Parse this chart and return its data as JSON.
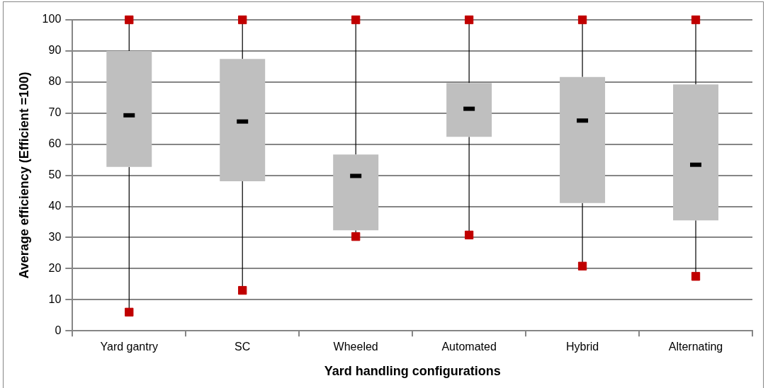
{
  "chart_data": {
    "type": "box",
    "xlabel": "Yard handling configurations",
    "ylabel": "Average efficiency (Efficient =100)",
    "categories": [
      "Yard gantry",
      "SC",
      "Wheeled",
      "Automated",
      "Hybrid",
      "Alternating"
    ],
    "series": [
      {
        "color": "#bfbfbf",
        "boxes": [
          {
            "low": 6,
            "q1": 52.7,
            "median": 69.3,
            "q3": 90,
            "high": 100
          },
          {
            "low": 13,
            "q1": 48.1,
            "median": 67.3,
            "q3": 87.4,
            "high": 100
          },
          {
            "low": 30.3,
            "q1": 32.3,
            "median": 49.8,
            "q3": 56.7,
            "high": 100
          },
          {
            "low": 30.8,
            "q1": 62.4,
            "median": 71.4,
            "q3": 79.7,
            "high": 100
          },
          {
            "low": 20.8,
            "q1": 41.1,
            "median": 67.6,
            "q3": 81.6,
            "high": 100
          },
          {
            "low": 17.5,
            "q1": 35.5,
            "median": 53.4,
            "q3": 79.2,
            "high": 100
          }
        ]
      },
      {
        "type": "scatter",
        "color": "#c00000",
        "x": [
          "Yard gantry",
          "SC",
          "Wheeled",
          "Automated",
          "Hybrid",
          "Alternating",
          "Yard gantry",
          "SC",
          "Wheeled",
          "Automated",
          "Hybrid",
          "Alternating"
        ],
        "values": [
          6,
          13,
          30.3,
          30.8,
          20.8,
          17.5,
          100,
          100,
          100,
          100,
          100,
          100
        ]
      }
    ],
    "ylim": [
      0,
      100
    ],
    "yticks": [
      0,
      10,
      20,
      30,
      40,
      50,
      60,
      70,
      80,
      90,
      100
    ],
    "grid": "y",
    "marker": "square"
  }
}
